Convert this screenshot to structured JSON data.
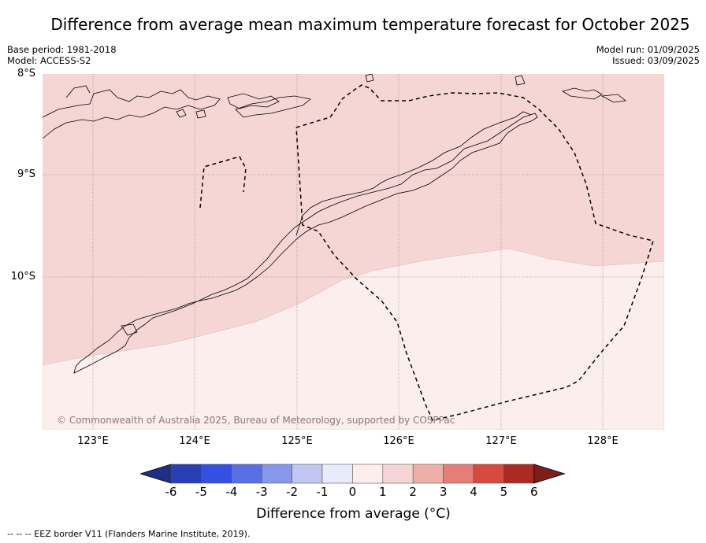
{
  "title": "Difference from average mean maximum temperature forecast for October 2025",
  "meta_left": {
    "base_period": "Base period: 1981-2018",
    "model": "Model: ACCESS-S2"
  },
  "meta_right": {
    "model_run": "Model run: 01/09/2025",
    "issued": "Issued: 03/09/2025"
  },
  "latitude_labels": [
    "8°S",
    "9°S",
    "10°S"
  ],
  "longitude_labels": [
    "123°E",
    "124°E",
    "125°E",
    "126°E",
    "127°E",
    "128°E"
  ],
  "copyright": "© Commonwealth of Australia 2025, Bureau of Meteorology, supported by COSPPac",
  "colorbar": {
    "ticks": [
      "-6",
      "-5",
      "-4",
      "-3",
      "-2",
      "-1",
      "0",
      "1",
      "2",
      "3",
      "4",
      "5",
      "6"
    ],
    "colors": [
      "#1f2f86",
      "#2a3fb5",
      "#3350e0",
      "#5a6fe4",
      "#8797ea",
      "#c0c7f3",
      "#e8ebfb",
      "#fbeeec",
      "#f5d6d4",
      "#eeaea9",
      "#e57e76",
      "#d74a3f",
      "#ab2a22",
      "#7d1e1a"
    ],
    "title": "Difference from average (°C)"
  },
  "shading": {
    "zone_1_to_2": "#f5d6d4",
    "zone_0_to_1": "#fbeeec"
  },
  "footnote": "--  --  -- EEZ border V11 (Flanders Marine Institute, 2019)."
}
